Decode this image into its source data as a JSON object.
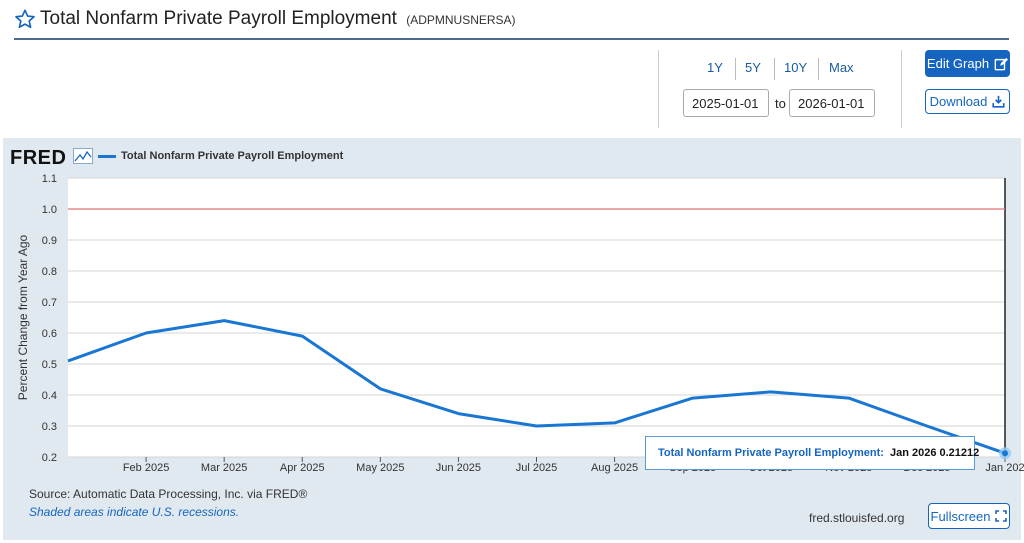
{
  "header": {
    "title": "Total Nonfarm Private Payroll Employment",
    "series_id": "(ADPMNUSNERSA)",
    "star_icon": "star-outline-icon"
  },
  "controls": {
    "ranges": [
      "1Y",
      "5Y",
      "10Y",
      "Max"
    ],
    "start_date": "2025-01-01",
    "end_date": "2026-01-01",
    "to_label": "to",
    "edit_graph_label": "Edit Graph",
    "edit_icon": "edit-icon",
    "download_label": "Download",
    "download_icon": "download-icon",
    "fullscreen_label": "Fullscreen",
    "fullscreen_icon": "fullscreen-icon"
  },
  "chart_meta": {
    "logo": "FRED",
    "logo_icon": "line-chart-icon",
    "source": "Source: Automatic Data Processing, Inc. via FRED®",
    "recession_note": "Shaded areas indicate U.S. recessions.",
    "site": "fred.stlouisfed.org",
    "tooltip_series": "Total Nonfarm Private Payroll Employment:",
    "tooltip_value": "Jan 2026 0.21212"
  },
  "colors": {
    "line": "#1976d2",
    "reference_line": "#e57373",
    "panel_bg": "#e1e9f0",
    "accent": "#1565c0"
  },
  "chart_data": {
    "type": "line",
    "title": "",
    "xlabel": "",
    "ylabel": "Percent Change from Year Ago",
    "x": [
      "Jan 2025",
      "Feb 2025",
      "Mar 2025",
      "Apr 2025",
      "May 2025",
      "Jun 2025",
      "Jul 2025",
      "Aug 2025",
      "Sep 2025",
      "Oct 2025",
      "Nov 2025",
      "Dec 2025",
      "Jan 2026"
    ],
    "tick_labels": [
      "Feb 2025",
      "Mar 2025",
      "Apr 2025",
      "May 2025",
      "Jun 2025",
      "Jul 2025",
      "Aug 2025",
      "Sep 2025",
      "Oct 2025",
      "Nov 2025",
      "Dec 2025",
      "Jan 202"
    ],
    "series": [
      {
        "name": "Total Nonfarm Private Payroll Employment",
        "values": [
          0.51,
          0.6,
          0.64,
          0.59,
          0.42,
          0.34,
          0.3,
          0.31,
          0.39,
          0.41,
          0.39,
          0.3,
          0.21212
        ]
      }
    ],
    "reference_line": 1.0,
    "ylim": [
      0.2,
      1.1
    ],
    "yticks": [
      "0.2",
      "0.3",
      "0.4",
      "0.5",
      "0.6",
      "0.7",
      "0.8",
      "0.9",
      "1.0",
      "1.1"
    ],
    "grid": true,
    "legend": "top-left"
  }
}
